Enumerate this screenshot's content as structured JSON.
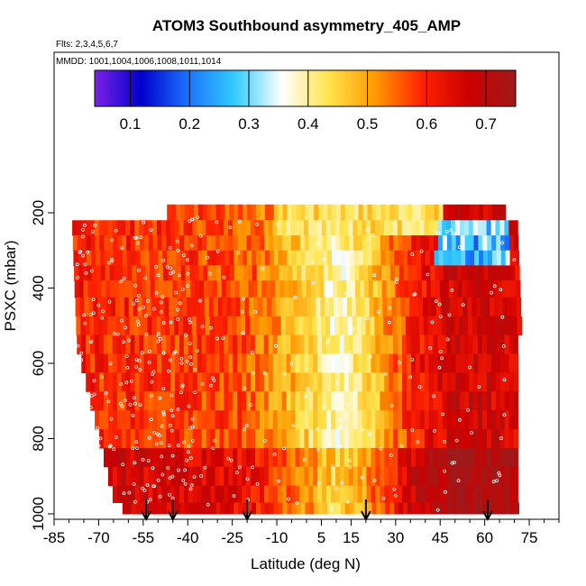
{
  "chart_data": {
    "type": "heatmap",
    "title": "ATOM3 Southbound asymmetry_405_AMP",
    "subtitle_flights": "Flts: 2,3,4,5,6,7",
    "subtitle_dates": "MMDD: 1001,1004,1006,1008,1011,1014",
    "xlabel": "Latitude (deg N)",
    "ylabel": "PSXC (mbar)",
    "xlim": [
      -85,
      85
    ],
    "ylim": [
      1000,
      100
    ],
    "x_ticks": [
      -85,
      -70,
      -55,
      -40,
      -25,
      -10,
      5,
      15,
      30,
      45,
      60,
      75
    ],
    "y_ticks": [
      200,
      400,
      600,
      800,
      1000
    ],
    "colorbar": {
      "range": [
        0.04,
        0.75
      ],
      "ticks": [
        0.1,
        0.2,
        0.3,
        0.4,
        0.5,
        0.6,
        0.7
      ],
      "colors": [
        "#7a22e6",
        "#0000cc",
        "#1a73ff",
        "#33ccff",
        "#ffffff",
        "#ffe44d",
        "#ff9900",
        "#ff2200",
        "#cc0000",
        "#9e1a1a"
      ]
    },
    "arrow_latitudes": [
      -54,
      -45,
      -20,
      20,
      61
    ],
    "pressure_levels": [
      200,
      240,
      280,
      320,
      360,
      400,
      450,
      500,
      550,
      600,
      650,
      700,
      750,
      800,
      850,
      900,
      950,
      990
    ],
    "latitude_extent": [
      -67,
      71
    ],
    "value_profile": [
      {
        "lat": -67,
        "value": 0.6
      },
      {
        "lat": -40,
        "value": 0.58
      },
      {
        "lat": -20,
        "value": 0.56
      },
      {
        "lat": -5,
        "value": 0.48
      },
      {
        "lat": 10,
        "value": 0.38
      },
      {
        "lat": 20,
        "value": 0.45
      },
      {
        "lat": 35,
        "value": 0.6
      },
      {
        "lat": 50,
        "value": 0.68
      },
      {
        "lat": 71,
        "value": 0.65
      }
    ],
    "upper_blue_patch": {
      "lat_min": 43,
      "lat_max": 68,
      "p_min": 230,
      "p_max": 350,
      "value": 0.2
    }
  }
}
